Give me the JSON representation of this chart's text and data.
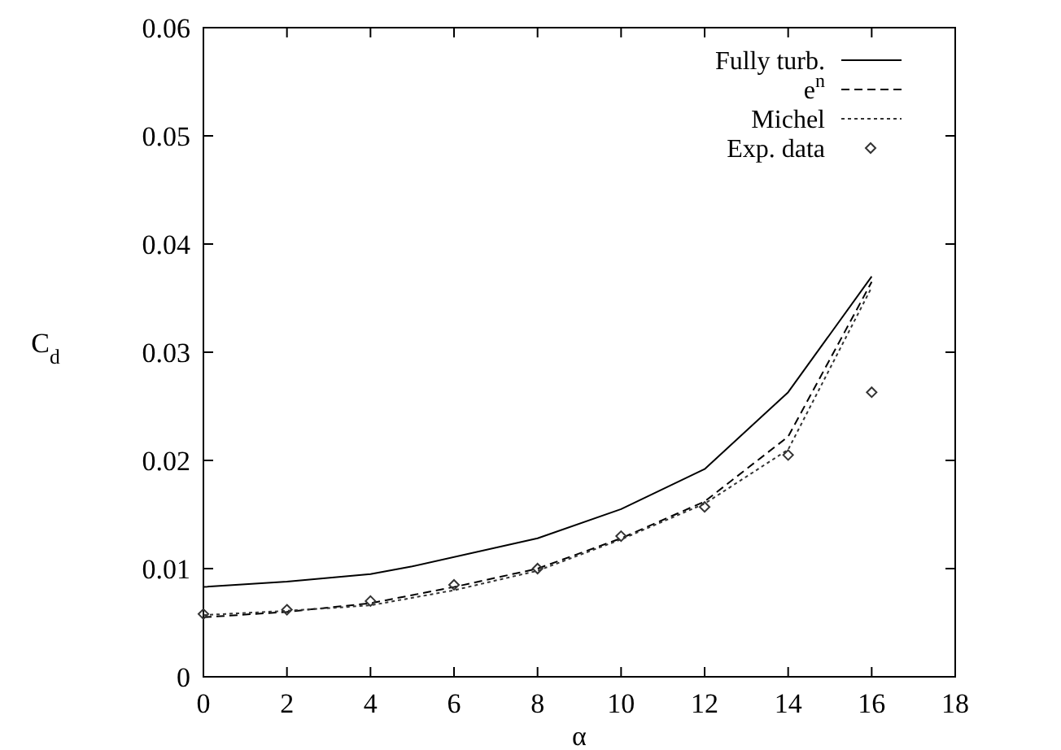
{
  "chart_data": {
    "type": "line",
    "xlabel": "α",
    "ylabel": "C$_{d}$",
    "xlim": [
      0,
      18
    ],
    "xticks": [
      0,
      2,
      4,
      6,
      8,
      10,
      12,
      14,
      16,
      18
    ],
    "ylim": [
      0,
      0.06
    ],
    "yticks": [
      {
        "value": 0,
        "label": "0"
      },
      {
        "value": 0.01,
        "label": "0.01"
      },
      {
        "value": 0.02,
        "label": "0.02"
      },
      {
        "value": 0.03,
        "label": "0.03"
      },
      {
        "value": 0.04,
        "label": "0.04"
      },
      {
        "value": 0.05,
        "label": "0.05"
      },
      {
        "value": 0.06,
        "label": "0.06"
      }
    ],
    "grid": false,
    "legend": "top right",
    "series": [
      {
        "name": "Fully turb.",
        "line_style": "solid",
        "color": "#000000",
        "x": [
          0,
          2,
          4,
          5,
          8,
          10,
          12,
          14,
          16
        ],
        "values": [
          0.0083,
          0.0088,
          0.0095,
          0.0102,
          0.0128,
          0.0155,
          0.0192,
          0.0263,
          0.037
        ]
      },
      {
        "name": "e$^{n}$",
        "line_style": "dashed",
        "color": "#000000",
        "x": [
          0,
          2,
          4,
          6,
          8,
          10,
          12,
          14,
          16
        ],
        "values": [
          0.0055,
          0.006,
          0.0068,
          0.0083,
          0.01,
          0.0128,
          0.0162,
          0.0222,
          0.0365
        ]
      },
      {
        "name": "Michel",
        "line_style": "dotted",
        "color": "#333333",
        "x": [
          0,
          2,
          4,
          6,
          8,
          10,
          12,
          14,
          16
        ],
        "values": [
          0.0057,
          0.0061,
          0.0066,
          0.008,
          0.0098,
          0.0127,
          0.016,
          0.021,
          0.036
        ]
      },
      {
        "name": "Exp. data",
        "type": "scatter",
        "marker": "diamond",
        "color": "#333333",
        "x": [
          0,
          2,
          4,
          6,
          8,
          10,
          12,
          14,
          16
        ],
        "values": [
          0.0058,
          0.0062,
          0.007,
          0.0085,
          0.01,
          0.013,
          0.0157,
          0.0205,
          0.0263
        ]
      }
    ]
  }
}
